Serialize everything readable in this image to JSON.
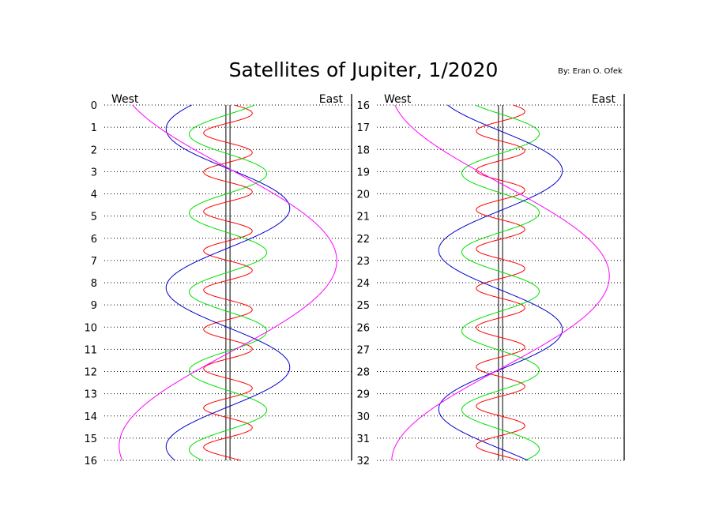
{
  "title": "Satellites of Jupiter, 1/2020",
  "author": "By: Eran O. Ofek",
  "chart_data": {
    "type": "line",
    "orientation": "vertical",
    "xlim": [
      -30,
      30
    ],
    "series": [
      {
        "key": "io",
        "color": "#ff0000",
        "amplitude": 5.9,
        "period": 1.769,
        "phase": 0.04
      },
      {
        "key": "europa",
        "color": "#00e000",
        "amplitude": 9.4,
        "period": 3.551,
        "phase": 0.38
      },
      {
        "key": "ganymede",
        "color": "#0000cc",
        "amplitude": 15.0,
        "period": 7.155,
        "phase": 0.6
      },
      {
        "key": "callisto",
        "color": "#ff00ff",
        "amplitude": 26.4,
        "period": 16.689,
        "phase": 0.83
      }
    ],
    "jupiter_band": [
      -0.5,
      0.5
    ],
    "panels": [
      {
        "direction_west": "West",
        "direction_east": "East",
        "ylim": [
          0,
          16
        ],
        "ticks": [
          "0",
          "1",
          "2",
          "3",
          "4",
          "5",
          "6",
          "7",
          "8",
          "9",
          "10",
          "11",
          "12",
          "13",
          "14",
          "15",
          "16"
        ]
      },
      {
        "direction_west": "West",
        "direction_east": "East",
        "ylim": [
          16,
          32
        ],
        "ticks": [
          "16",
          "17",
          "18",
          "19",
          "20",
          "21",
          "22",
          "23",
          "24",
          "25",
          "26",
          "27",
          "28",
          "29",
          "30",
          "31",
          "32"
        ]
      }
    ]
  }
}
